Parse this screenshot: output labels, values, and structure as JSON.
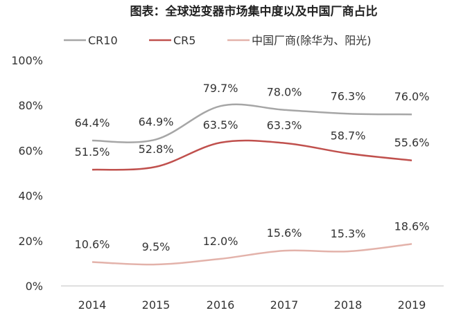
{
  "chart_data": {
    "type": "line",
    "title": "图表：全球逆变器市场集中度以及中国厂商占比",
    "categories": [
      "2014",
      "2015",
      "2016",
      "2017",
      "2018",
      "2019"
    ],
    "ylim": [
      0,
      100
    ],
    "yticks": [
      "0%",
      "20%",
      "40%",
      "60%",
      "80%",
      "100%"
    ],
    "legend_position": "top",
    "series": [
      {
        "name": "CR10",
        "color": "#a6a6a6",
        "values": [
          64.4,
          64.9,
          79.7,
          78.0,
          76.3,
          76.0
        ],
        "labels": [
          "64.4%",
          "64.9%",
          "79.7%",
          "78.0%",
          "76.3%",
          "76.0%"
        ]
      },
      {
        "name": "CR5",
        "color": "#c0504d",
        "values": [
          51.5,
          52.8,
          63.5,
          63.3,
          58.7,
          55.6
        ],
        "labels": [
          "51.5%",
          "52.8%",
          "63.5%",
          "63.3%",
          "58.7%",
          "55.6%"
        ]
      },
      {
        "name": "中国厂商(除华为、阳光)",
        "color": "#e3b2aa",
        "values": [
          10.6,
          9.5,
          12.0,
          15.6,
          15.3,
          18.6
        ],
        "labels": [
          "10.6%",
          "9.5%",
          "12.0%",
          "15.6%",
          "15.3%",
          "18.6%"
        ]
      }
    ]
  }
}
